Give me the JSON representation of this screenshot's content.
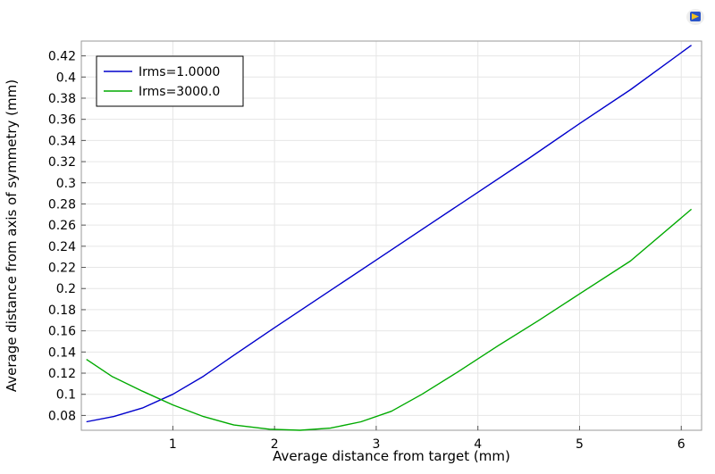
{
  "chart_data": {
    "type": "line",
    "title": "",
    "xlabel": "Average distance from target (mm)",
    "ylabel": "Average distance from axis of symmetry (mm)",
    "xlim": [
      0.1,
      6.2
    ],
    "ylim": [
      0.066,
      0.434
    ],
    "xticks": [
      1,
      2,
      3,
      4,
      5,
      6
    ],
    "yticks": [
      0.08,
      0.1,
      0.12,
      0.14,
      0.16,
      0.18,
      0.2,
      0.22,
      0.24,
      0.26,
      0.28,
      0.3,
      0.32,
      0.34,
      0.36,
      0.38,
      0.4,
      0.42
    ],
    "grid": true,
    "legend_position": "top-left",
    "series": [
      {
        "name": "Irms=1.0000",
        "color": "#0000cc",
        "x": [
          0.15,
          0.42,
          0.7,
          1.0,
          1.3,
          1.6,
          2.0,
          2.5,
          3.0,
          3.5,
          4.0,
          4.5,
          5.0,
          5.5,
          6.1
        ],
        "y": [
          0.074,
          0.079,
          0.087,
          0.1,
          0.117,
          0.137,
          0.163,
          0.195,
          0.227,
          0.259,
          0.291,
          0.323,
          0.356,
          0.388,
          0.43
        ]
      },
      {
        "name": "Irms=3000.0",
        "color": "#00aa00",
        "x": [
          0.15,
          0.4,
          0.7,
          1.0,
          1.3,
          1.6,
          1.95,
          2.25,
          2.55,
          2.85,
          3.15,
          3.45,
          3.8,
          4.2,
          4.6,
          5.0,
          5.5,
          6.1
        ],
        "y": [
          0.133,
          0.117,
          0.103,
          0.09,
          0.079,
          0.071,
          0.067,
          0.066,
          0.068,
          0.074,
          0.084,
          0.1,
          0.121,
          0.146,
          0.17,
          0.195,
          0.226,
          0.275
        ]
      }
    ]
  }
}
